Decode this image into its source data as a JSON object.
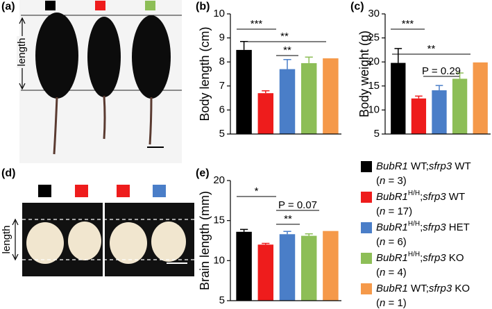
{
  "panel_labels": [
    "(a)",
    "(b)",
    "(c)",
    "(d)",
    "(e)"
  ],
  "photo_a": {
    "label": "length"
  },
  "photo_d": {
    "label": "length"
  },
  "chart_data": [
    {
      "type": "bar",
      "ylabel": "Body length (cm)",
      "ylim": [
        5,
        10
      ],
      "yticks": [
        5,
        6,
        7,
        8,
        9,
        10
      ],
      "colors": [
        "#000000",
        "#ee1c1c",
        "#4a7ec8",
        "#8dbe57",
        "#f5994a"
      ],
      "values": [
        8.5,
        6.7,
        7.7,
        7.95,
        8.15
      ],
      "errors": [
        0.35,
        0.1,
        0.4,
        0.25,
        null
      ],
      "annotations": [
        {
          "text": "***"
        },
        {
          "text": "**"
        },
        {
          "text": "**"
        }
      ]
    },
    {
      "type": "bar",
      "ylabel": "Body weight (g)",
      "ylim": [
        5,
        30
      ],
      "yticks": [
        5,
        10,
        15,
        20,
        25,
        30
      ],
      "colors": [
        "#000000",
        "#ee1c1c",
        "#4a7ec8",
        "#8dbe57",
        "#f5994a"
      ],
      "values": [
        19.8,
        12.4,
        14.1,
        16.5,
        19.9
      ],
      "errors": [
        3,
        0.5,
        1,
        1.2,
        null
      ],
      "annotations": [
        {
          "text": "***"
        },
        {
          "text": "**"
        },
        {
          "text": "P = 0.29"
        }
      ]
    },
    {
      "type": "bar",
      "ylabel": "Brain length (mm)",
      "ylim": [
        5,
        20
      ],
      "yticks": [
        5,
        10,
        15,
        20
      ],
      "colors": [
        "#000000",
        "#ee1c1c",
        "#4a7ec8",
        "#8dbe57",
        "#f5994a"
      ],
      "values": [
        13.6,
        12.0,
        13.3,
        13.1,
        13.7
      ],
      "errors": [
        0.3,
        0.15,
        0.35,
        0.25,
        null
      ],
      "annotations": [
        {
          "text": "*"
        },
        {
          "text": "P = 0.07"
        },
        {
          "text": "**"
        }
      ]
    }
  ],
  "legend": [
    {
      "color": "#000000",
      "lines": [
        [
          {
            "text": "BubR1",
            "style": "italic"
          },
          {
            "text": " WT;"
          },
          {
            "text": "sfrp3",
            "style": "italic"
          },
          {
            "text": " WT"
          }
        ],
        [
          {
            "text": "("
          },
          {
            "text": "n",
            "style": "italic"
          },
          {
            "text": " = 3)"
          }
        ]
      ]
    },
    {
      "color": "#ee1c1c",
      "lines": [
        [
          {
            "text": "BubR1",
            "style": "italic"
          },
          {
            "text": "H/H",
            "style": "sup"
          },
          {
            "text": ";"
          },
          {
            "text": "sfrp3",
            "style": "italic"
          },
          {
            "text": " WT"
          }
        ],
        [
          {
            "text": "("
          },
          {
            "text": "n",
            "style": "italic"
          },
          {
            "text": " = 17)"
          }
        ]
      ]
    },
    {
      "color": "#4a7ec8",
      "lines": [
        [
          {
            "text": "BubR1",
            "style": "italic"
          },
          {
            "text": "H/H",
            "style": "sup"
          },
          {
            "text": ";"
          },
          {
            "text": "sfrp3",
            "style": "italic"
          },
          {
            "text": " HET"
          }
        ],
        [
          {
            "text": "("
          },
          {
            "text": "n",
            "style": "italic"
          },
          {
            "text": " = 6)"
          }
        ]
      ]
    },
    {
      "color": "#8dbe57",
      "lines": [
        [
          {
            "text": "BubR1",
            "style": "italic"
          },
          {
            "text": "H/H",
            "style": "sup"
          },
          {
            "text": ";"
          },
          {
            "text": "sfrp3",
            "style": "italic"
          },
          {
            "text": " KO"
          }
        ],
        [
          {
            "text": "("
          },
          {
            "text": "n",
            "style": "italic"
          },
          {
            "text": " = 4)"
          }
        ]
      ]
    },
    {
      "color": "#f5994a",
      "lines": [
        [
          {
            "text": "BubR1",
            "style": "italic"
          },
          {
            "text": " WT;"
          },
          {
            "text": "sfrp3",
            "style": "italic"
          },
          {
            "text": " KO"
          }
        ],
        [
          {
            "text": "("
          },
          {
            "text": "n",
            "style": "italic"
          },
          {
            "text": " = 1)"
          }
        ]
      ]
    }
  ]
}
